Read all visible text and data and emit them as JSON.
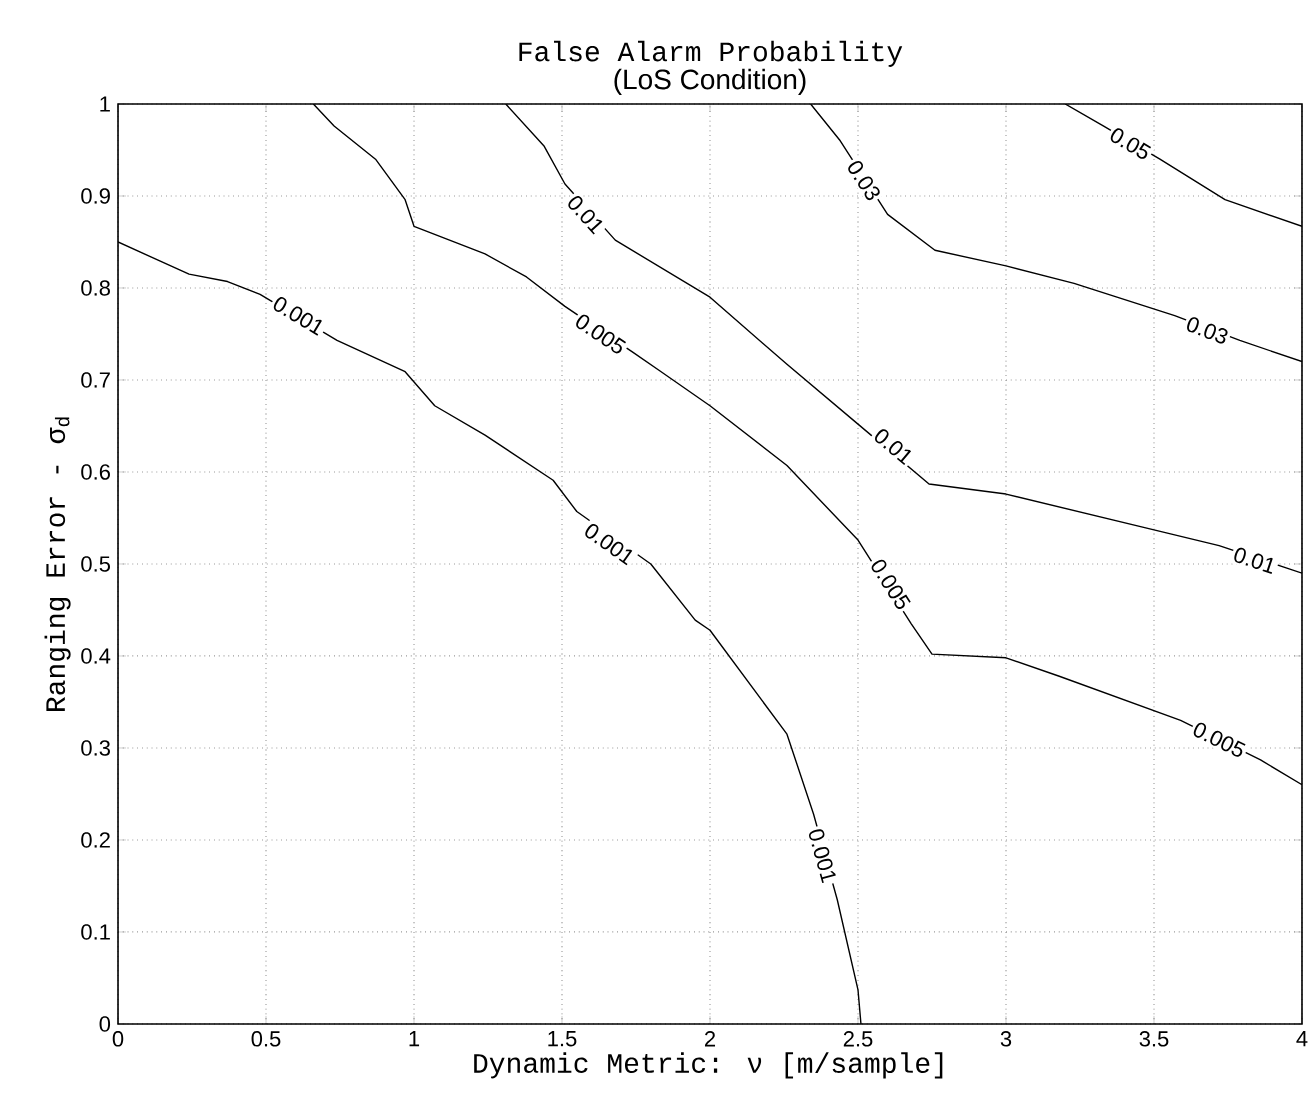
{
  "chart_data": {
    "type": "line",
    "title": "False Alarm Probability",
    "subtitle": "(LoS Condition)",
    "xlabel": "Dynamic Metric: ν [m/sample]",
    "ylabel": "Ranging Error - σ$_{d}$",
    "xlim": [
      0,
      4
    ],
    "ylim": [
      0,
      1
    ],
    "xticks": [
      0,
      0.5,
      1,
      1.5,
      2,
      2.5,
      3,
      3.5,
      4
    ],
    "yticks": [
      0,
      0.1,
      0.2,
      0.3,
      0.4,
      0.5,
      0.6,
      0.7,
      0.8,
      0.9,
      1
    ],
    "grid": true,
    "line_style": "solid",
    "series": [
      {
        "color": "#000000",
        "x": [
          0,
          0.24,
          0.37,
          0.48,
          0.74,
          0.97,
          1.07,
          1.24,
          1.47,
          1.55,
          1.8,
          1.95,
          2.0,
          2.26,
          2.35,
          2.43,
          2.5,
          2.51
        ],
        "values": [
          0.85,
          0.815,
          0.807,
          0.793,
          0.743,
          0.709,
          0.672,
          0.64,
          0.591,
          0.557,
          0.5,
          0.439,
          0.428,
          0.315,
          0.228,
          0.135,
          0.037,
          0
        ]
      },
      {
        "color": "#000000",
        "x": [
          0.66,
          0.73,
          0.87,
          0.97,
          1.0,
          1.24,
          1.38,
          1.51,
          1.74,
          1.83,
          2.0,
          2.26,
          2.5,
          2.68,
          2.75,
          3.0,
          3.18,
          3.59,
          3.86,
          4.0
        ],
        "values": [
          1,
          0.976,
          0.94,
          0.896,
          0.867,
          0.837,
          0.812,
          0.78,
          0.73,
          0.71,
          0.672,
          0.607,
          0.526,
          0.435,
          0.402,
          0.398,
          0.378,
          0.33,
          0.287,
          0.26
        ]
      },
      {
        "color": "#000000",
        "x": [
          1.31,
          1.44,
          1.51,
          1.68,
          2.0,
          2.26,
          2.5,
          2.74,
          3.0,
          3.5,
          3.72,
          4.0
        ],
        "values": [
          1,
          0.954,
          0.913,
          0.852,
          0.79,
          0.717,
          0.652,
          0.587,
          0.576,
          0.537,
          0.52,
          0.49
        ]
      },
      {
        "color": "#000000",
        "x": [
          2.34,
          2.44,
          2.6,
          2.76,
          3.0,
          3.23,
          3.57,
          3.79,
          4.0
        ],
        "values": [
          1,
          0.96,
          0.88,
          0.841,
          0.824,
          0.805,
          0.77,
          0.743,
          0.72
        ]
      },
      {
        "color": "#000000",
        "x": [
          3.2,
          3.33,
          3.52,
          3.74,
          4.0
        ],
        "values": [
          1,
          0.976,
          0.94,
          0.896,
          0.867
        ]
      }
    ],
    "annotations": [
      {
        "text": "0.001",
        "x": 0.61,
        "y": 0.77
      },
      {
        "text": "0.001",
        "x": 1.66,
        "y": 0.522
      },
      {
        "text": "0.001",
        "x": 2.38,
        "y": 0.183
      },
      {
        "text": "0.005",
        "x": 1.63,
        "y": 0.75
      },
      {
        "text": "0.005",
        "x": 2.61,
        "y": 0.478
      },
      {
        "text": "0.005",
        "x": 3.72,
        "y": 0.309
      },
      {
        "text": "0.01",
        "x": 1.58,
        "y": 0.88
      },
      {
        "text": "0.01",
        "x": 2.62,
        "y": 0.628
      },
      {
        "text": "0.01",
        "x": 3.84,
        "y": 0.504
      },
      {
        "text": "0.03",
        "x": 2.52,
        "y": 0.917
      },
      {
        "text": "0.03",
        "x": 3.68,
        "y": 0.754
      },
      {
        "text": "0.05",
        "x": 3.42,
        "y": 0.957
      }
    ]
  }
}
